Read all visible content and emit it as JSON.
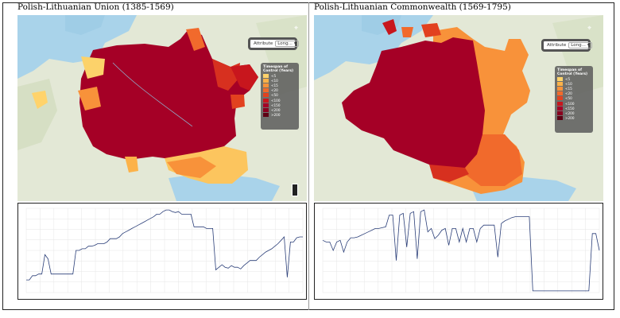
{
  "panels": [
    {
      "title": "Polish-Lithuanian Union (1385-1569)",
      "attribute_label": "Attribute",
      "attribute_value": "Long...",
      "legend_title": "Timespan of Control (Years)",
      "legend": [
        {
          "label": "<5",
          "color": "#ffd36b"
        },
        {
          "label": "<10",
          "color": "#fcb249"
        },
        {
          "label": "<15",
          "color": "#f8923a"
        },
        {
          "label": "<20",
          "color": "#f16a2c"
        },
        {
          "label": "<50",
          "color": "#e2411f"
        },
        {
          "label": "<100",
          "color": "#c8161d"
        },
        {
          "label": "<150",
          "color": "#a50026"
        },
        {
          "label": "<200",
          "color": "#8a001f"
        },
        {
          "label": ">200",
          "color": "#5e0014"
        }
      ],
      "chart_data": {
        "type": "line",
        "series": [
          {
            "values": [
              0.15,
              0.15,
              0.2,
              0.2,
              0.22,
              0.22,
              0.45,
              0.4,
              0.22,
              0.22,
              0.22,
              0.22,
              0.22,
              0.22,
              0.22,
              0.22,
              0.5,
              0.5,
              0.52,
              0.52,
              0.55,
              0.55,
              0.56,
              0.58,
              0.58,
              0.58,
              0.6,
              0.64,
              0.64,
              0.64,
              0.66,
              0.7,
              0.72,
              0.74,
              0.76,
              0.78,
              0.8,
              0.82,
              0.84,
              0.86,
              0.88,
              0.9,
              0.93,
              0.93,
              0.96,
              0.98,
              0.98,
              0.96,
              0.95,
              0.96,
              0.93,
              0.93,
              0.93,
              0.93,
              0.78,
              0.78,
              0.78,
              0.78,
              0.76,
              0.76,
              0.76,
              0.27,
              0.3,
              0.33,
              0.3,
              0.29,
              0.32,
              0.3,
              0.3,
              0.28,
              0.32,
              0.35,
              0.38,
              0.38,
              0.38,
              0.42,
              0.45,
              0.48,
              0.5,
              0.52,
              0.55,
              0.58,
              0.62,
              0.66,
              0.18,
              0.6,
              0.6,
              0.65,
              0.66,
              0.66
            ]
          }
        ]
      }
    },
    {
      "title": "Polish-Lithuanian Commonwealth (1569-1795)",
      "attribute_label": "Attribute",
      "attribute_value": "Long...",
      "legend_title": "Timespan of Control (Years)",
      "legend": [
        {
          "label": "<5",
          "color": "#ffd36b"
        },
        {
          "label": "<10",
          "color": "#fcb249"
        },
        {
          "label": "<15",
          "color": "#f8923a"
        },
        {
          "label": "<20",
          "color": "#f16a2c"
        },
        {
          "label": "<50",
          "color": "#e2411f"
        },
        {
          "label": "<100",
          "color": "#c8161d"
        },
        {
          "label": "<150",
          "color": "#a50026"
        },
        {
          "label": "<200",
          "color": "#8a001f"
        },
        {
          "label": ">200",
          "color": "#5e0014"
        }
      ],
      "chart_data": {
        "type": "line",
        "series": [
          {
            "values": [
              0.62,
              0.6,
              0.6,
              0.5,
              0.6,
              0.62,
              0.48,
              0.6,
              0.65,
              0.65,
              0.66,
              0.68,
              0.7,
              0.72,
              0.74,
              0.76,
              0.76,
              0.77,
              0.78,
              0.92,
              0.92,
              0.38,
              0.92,
              0.94,
              0.54,
              0.94,
              0.96,
              0.4,
              0.96,
              0.98,
              0.72,
              0.76,
              0.64,
              0.68,
              0.74,
              0.76,
              0.56,
              0.76,
              0.76,
              0.6,
              0.76,
              0.6,
              0.76,
              0.76,
              0.6,
              0.76,
              0.8,
              0.8,
              0.8,
              0.8,
              0.42,
              0.82,
              0.85,
              0.87,
              0.89,
              0.9,
              0.9,
              0.9,
              0.9,
              0.9,
              0.02,
              0.02,
              0.02,
              0.02,
              0.02,
              0.02,
              0.02,
              0.02,
              0.02,
              0.02,
              0.02,
              0.02,
              0.02,
              0.02,
              0.02,
              0.02,
              0.02,
              0.7,
              0.7,
              0.5
            ]
          }
        ]
      }
    }
  ]
}
